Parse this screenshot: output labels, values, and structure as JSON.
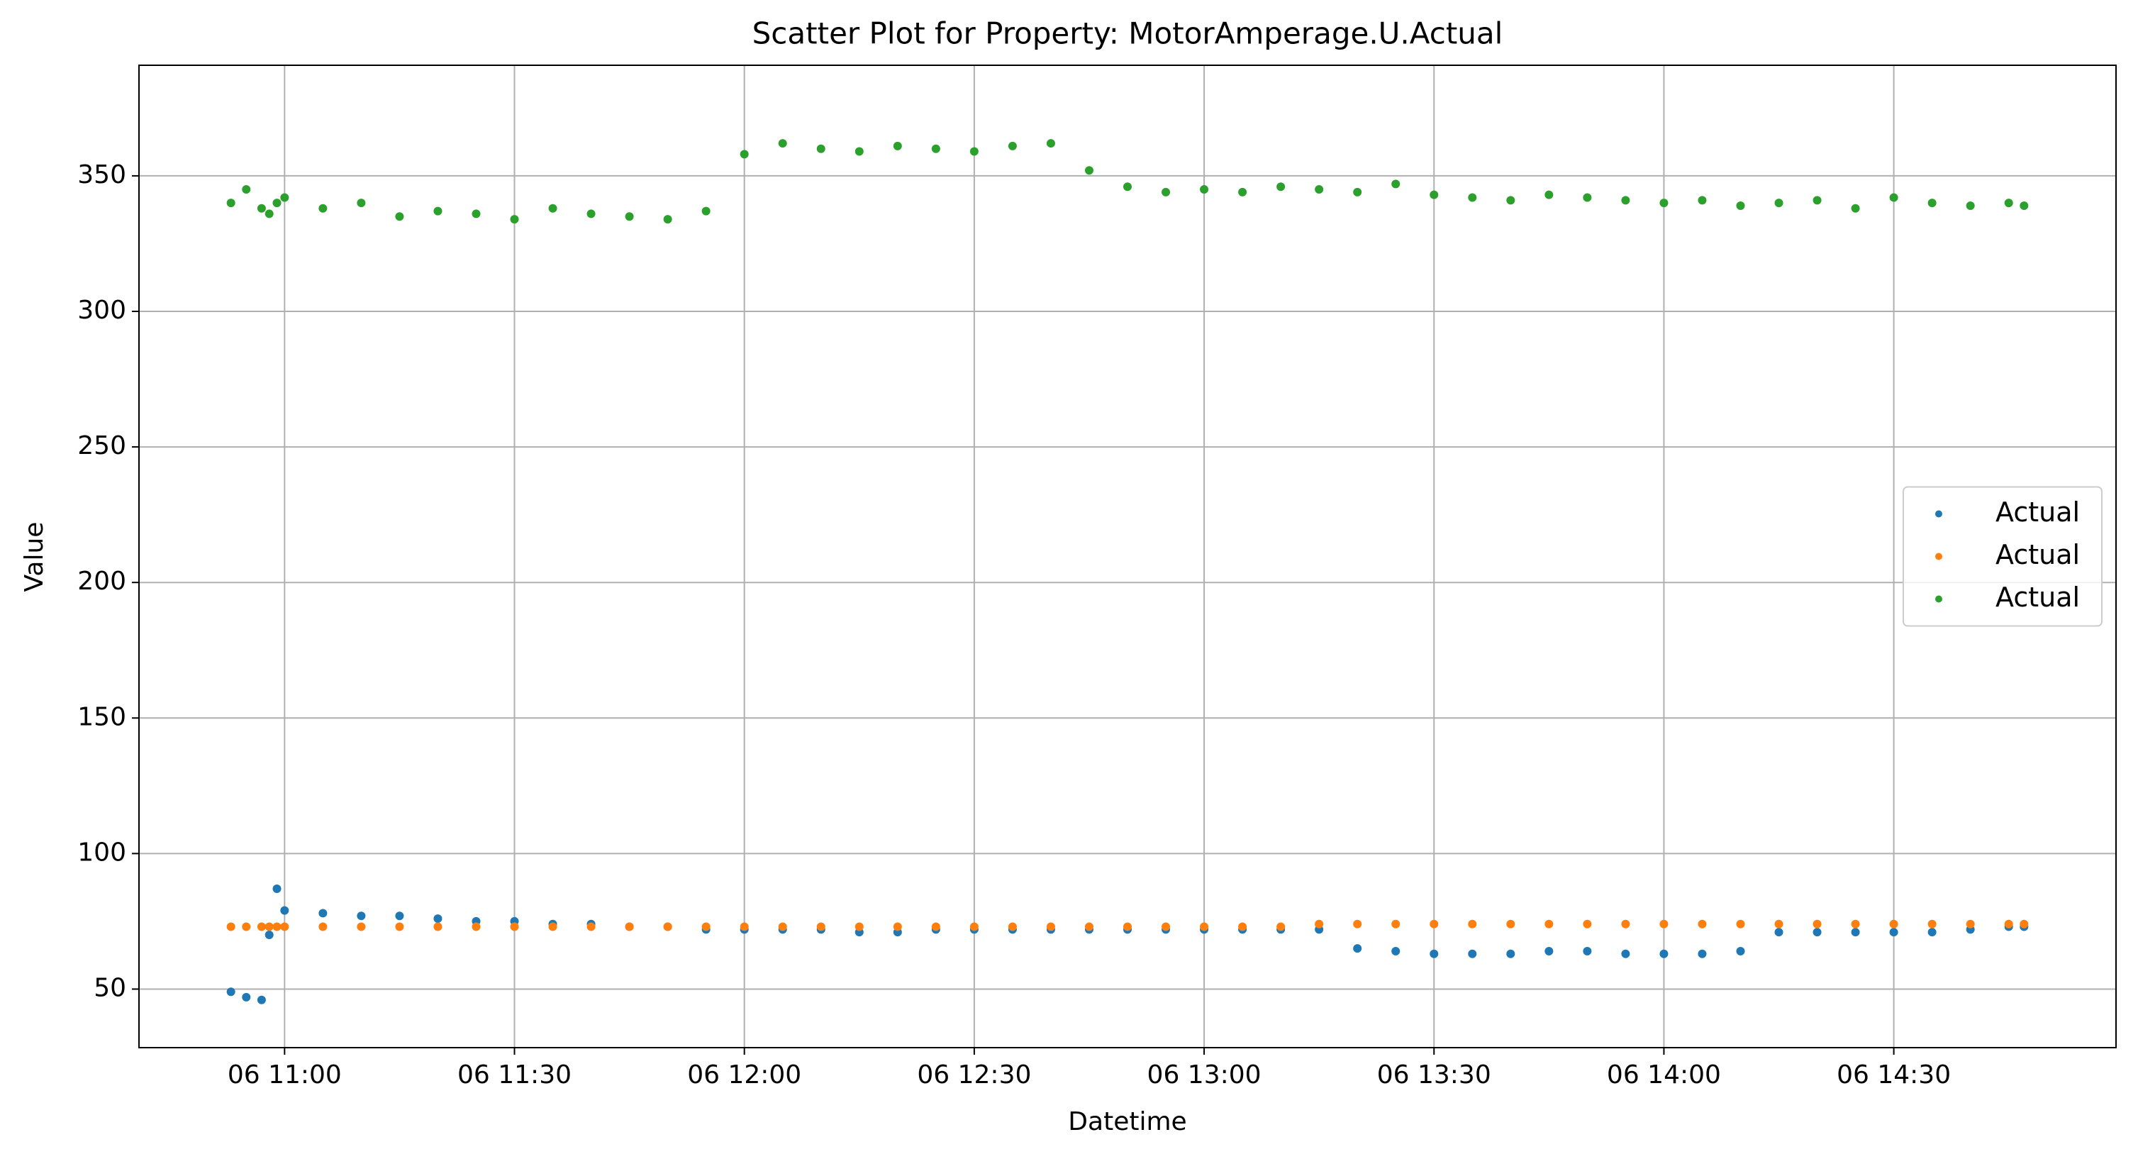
{
  "chart_data": {
    "type": "scatter",
    "title": "Scatter Plot for Property: MotorAmperage.U.Actual",
    "x_label": "Datetime",
    "y_label": "Value",
    "x": [
      "06 10:53",
      "06 10:55",
      "06 10:57",
      "06 10:58",
      "06 10:59",
      "06 11:00",
      "06 11:05",
      "06 11:10",
      "06 11:15",
      "06 11:20",
      "06 11:25",
      "06 11:30",
      "06 11:35",
      "06 11:40",
      "06 11:45",
      "06 11:50",
      "06 11:55",
      "06 12:00",
      "06 12:05",
      "06 12:10",
      "06 12:15",
      "06 12:20",
      "06 12:25",
      "06 12:30",
      "06 12:35",
      "06 12:40",
      "06 12:45",
      "06 12:50",
      "06 12:55",
      "06 13:00",
      "06 13:05",
      "06 13:10",
      "06 13:15",
      "06 13:20",
      "06 13:25",
      "06 13:30",
      "06 13:35",
      "06 13:40",
      "06 13:45",
      "06 13:50",
      "06 13:55",
      "06 14:00",
      "06 14:05",
      "06 14:10",
      "06 14:15",
      "06 14:20",
      "06 14:25",
      "06 14:30",
      "06 14:35",
      "06 14:40",
      "06 14:45",
      "06 14:47"
    ],
    "series": [
      {
        "name": "Actual",
        "color": "#1f77b4",
        "values": [
          49,
          47,
          46,
          70,
          87,
          79,
          78,
          77,
          77,
          76,
          75,
          75,
          74,
          74,
          73,
          73,
          72,
          72,
          72,
          72,
          71,
          71,
          72,
          72,
          72,
          72,
          72,
          72,
          72,
          72,
          72,
          72,
          72,
          65,
          64,
          63,
          63,
          63,
          64,
          64,
          63,
          63,
          63,
          64,
          71,
          71,
          71,
          71,
          71,
          72,
          73,
          73
        ]
      },
      {
        "name": "Actual",
        "color": "#ff7f0e",
        "values": [
          73,
          73,
          73,
          73,
          73,
          73,
          73,
          73,
          73,
          73,
          73,
          73,
          73,
          73,
          73,
          73,
          73,
          73,
          73,
          73,
          73,
          73,
          73,
          73,
          73,
          73,
          73,
          73,
          73,
          73,
          73,
          73,
          74,
          74,
          74,
          74,
          74,
          74,
          74,
          74,
          74,
          74,
          74,
          74,
          74,
          74,
          74,
          74,
          74,
          74,
          74,
          74
        ]
      },
      {
        "name": "Actual",
        "color": "#2ca02c",
        "values": [
          340,
          345,
          338,
          336,
          340,
          342,
          338,
          340,
          335,
          337,
          336,
          334,
          338,
          336,
          335,
          334,
          337,
          358,
          362,
          360,
          359,
          361,
          360,
          359,
          361,
          362,
          352,
          346,
          344,
          345,
          344,
          346,
          345,
          344,
          347,
          343,
          342,
          341,
          343,
          342,
          341,
          340,
          341,
          339,
          340,
          341,
          338,
          342,
          340,
          339,
          340,
          339
        ]
      }
    ],
    "xlim": [
      "06 10:41",
      "06 14:59"
    ],
    "xticks": [
      "06 11:00",
      "06 11:30",
      "06 12:00",
      "06 12:30",
      "06 13:00",
      "06 13:30",
      "06 14:00",
      "06 14:30"
    ],
    "ylim": [
      28.4,
      390.8
    ],
    "yticks": [
      50,
      100,
      150,
      200,
      250,
      300,
      350
    ],
    "grid": true,
    "legend": "center right"
  }
}
